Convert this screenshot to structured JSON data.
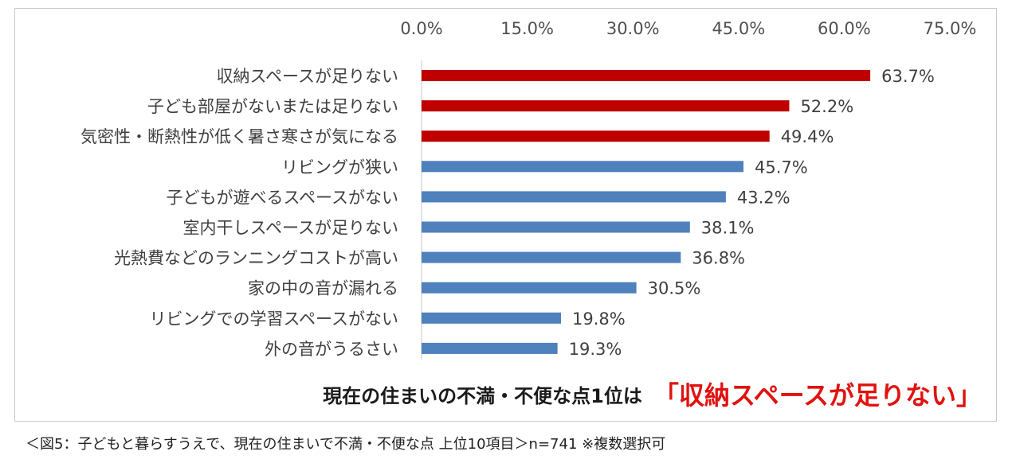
{
  "chart_data": {
    "type": "bar",
    "orientation": "horizontal",
    "xlim": [
      0,
      75
    ],
    "x_ticks": [
      0,
      15,
      30,
      45,
      60,
      75
    ],
    "x_tick_labels": [
      "0.0%",
      "15.0%",
      "30.0%",
      "45.0%",
      "60.0%",
      "75.0%"
    ],
    "axis_position": "top",
    "categories": [
      "収納スペースが足りない",
      "子ども部屋がないまたは足りない",
      "気密性・断熱性が低く暑さ寒さが気になる",
      "リビングが狭い",
      "子どもが遊べるスペースがない",
      "室内干しスペースが足りない",
      "光熱費などのランニングコストが高い",
      "家の中の音が漏れる",
      "リビングでの学習スペースがない",
      "外の音がうるさい"
    ],
    "values": [
      63.7,
      52.2,
      49.4,
      45.7,
      43.2,
      38.1,
      36.8,
      30.5,
      19.8,
      19.3
    ],
    "value_labels": [
      "63.7%",
      "52.2%",
      "49.4%",
      "45.7%",
      "43.2%",
      "38.1%",
      "36.8%",
      "30.5%",
      "19.8%",
      "19.3%"
    ],
    "highlight_top_n": 3,
    "colors": {
      "highlight": "#c00000",
      "default": "#4f81bd",
      "axis_line": "#d9d9d9"
    }
  },
  "headline": {
    "main": "現在の住まいの不満・不便な点1位は",
    "accent": "「収納スペースが足りない」"
  },
  "caption": "＜図5：子どもと暮らすうえで、現在の住まいで不満・不便な点 上位10項目＞n=741 ※複数選択可"
}
